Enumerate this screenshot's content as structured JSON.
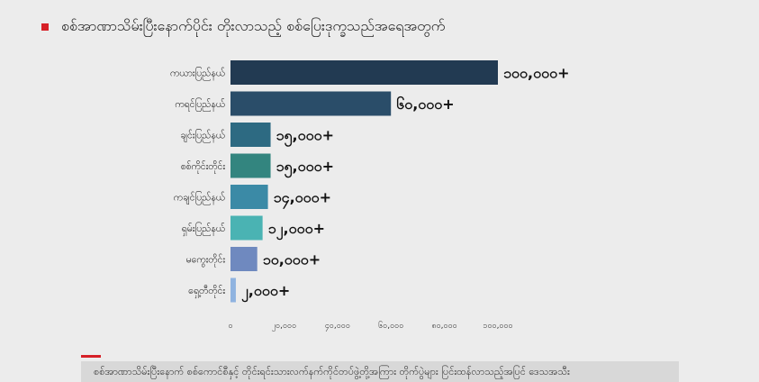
{
  "title": "စစ်အာဏာသိမ်းပြီးနောက်ပိုင်း တိုးလာသည့် စစ်ပြေးဒုက္ခသည်အရေအတွက်",
  "footer_note": "စစ်အာဏာသိမ်းပြီးနောက် စစ်ကောင်စီနှင့် တိုင်းရင်းသားလက်နက်ကိုင်တပ်ဖွဲ့တို့အကြား တိုက်ပွဲများ ပြင်းထန်လာသည့်အပြင် ဒေသအသီး",
  "colors": {
    "accent": "#d62027",
    "bars": [
      "#223a52",
      "#2a4d69",
      "#2d6a82",
      "#33857f",
      "#3b8aa6",
      "#4ab3b3",
      "#6f89bf",
      "#8fb3e0"
    ]
  },
  "chart_data": {
    "type": "bar",
    "orientation": "horizontal",
    "categories": [
      "ကယားပြည်နယ်",
      "ကရင်ပြည်နယ်",
      "ချင်းပြည်နယ်",
      "စစ်ကိုင်းတိုင်း",
      "ကချင်ပြည်နယ်",
      "ရှမ်းပြည်နယ်",
      "မကွေးတိုင်း",
      "ရှေ့တီတိုင်း"
    ],
    "values": [
      100000,
      60000,
      15000,
      15000,
      14000,
      12000,
      10000,
      2000
    ],
    "value_labels": [
      "၁၀၀,၀၀၀+",
      "၆၀,၀၀၀+",
      "၁၅,၀၀၀+",
      "၁၅,၀၀၀+",
      "၁၄,၀၀၀+",
      "၁၂,၀၀၀+",
      "၁၀,၀၀၀+",
      "၂,၀၀၀+"
    ],
    "xlim": [
      0,
      100000
    ],
    "ticks": [
      0,
      20000,
      40000,
      60000,
      80000,
      100000
    ],
    "tick_labels": [
      "၀",
      "၂၀,၀၀၀",
      "၄၀,၀၀၀",
      "၆၀,၀၀၀",
      "၈၀,၀၀၀",
      "၁၀၀,၀၀၀"
    ],
    "grid": false,
    "legend": "none"
  }
}
